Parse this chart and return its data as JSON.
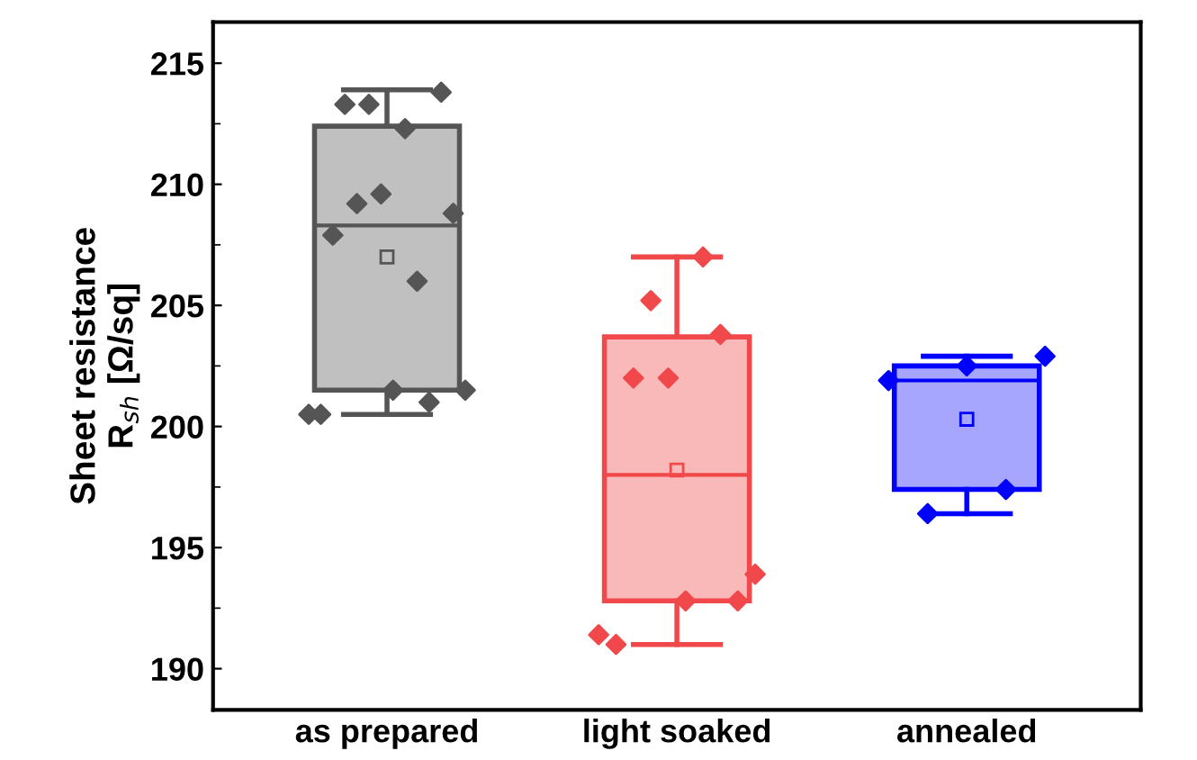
{
  "chart_data": {
    "type": "box",
    "ylabel": "Sheet resistance\nR$_{sh}$ [Ω/sq]",
    "categories": [
      "as prepared",
      "light soaked",
      "annealed"
    ],
    "colors": [
      "#c0c0c0",
      "#f9b9b9",
      "#a6a6ff"
    ],
    "boxes": [
      {
        "low": 200.5,
        "q1": 201.5,
        "median": 208.3,
        "q3": 212.4,
        "high": 213.9,
        "mean": 207.0
      },
      {
        "low": 191.0,
        "q1": 192.8,
        "median": 198.0,
        "q3": 203.7,
        "high": 207.0,
        "mean": 198.2
      },
      {
        "low": 196.4,
        "q1": 197.4,
        "median": 201.9,
        "q3": 202.5,
        "high": 202.9,
        "mean": 200.3
      }
    ],
    "series": [
      {
        "type": "scatter",
        "color": "#555555",
        "x": [
          "as prepared",
          "as prepared",
          "as prepared",
          "as prepared",
          "as prepared",
          "as prepared",
          "as prepared",
          "as prepared",
          "as prepared",
          "as prepared",
          "as prepared",
          "as prepared",
          "as prepared",
          "as prepared"
        ],
        "values": [
          200.5,
          200.5,
          207.9,
          213.3,
          209.2,
          213.3,
          209.6,
          201.5,
          212.3,
          206.0,
          201.0,
          213.8,
          208.8,
          201.5
        ]
      },
      {
        "type": "scatter",
        "color": "#f0484b",
        "x": [
          "light soaked",
          "light soaked",
          "light soaked",
          "light soaked",
          "light soaked",
          "light soaked",
          "light soaked",
          "light soaked",
          "light soaked",
          "light soaked"
        ],
        "values": [
          191.4,
          191.0,
          202.0,
          205.2,
          202.0,
          192.8,
          207.0,
          203.8,
          192.8,
          193.9
        ]
      },
      {
        "type": "scatter",
        "color": "#0000ff",
        "x": [
          "annealed",
          "annealed",
          "annealed",
          "annealed",
          "annealed"
        ],
        "values": [
          201.9,
          196.4,
          202.5,
          197.4,
          202.9
        ]
      }
    ],
    "marker": "diamond",
    "ylim": [
      188.3,
      216.7
    ],
    "yticks": [
      190,
      195,
      200,
      205,
      210,
      215
    ],
    "grid": false,
    "legend": false
  }
}
